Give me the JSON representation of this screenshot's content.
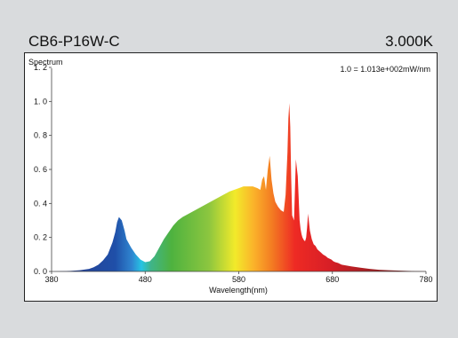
{
  "header": {
    "model": "CB6-P16W-C",
    "cct": "3.000K"
  },
  "chart_data": {
    "type": "area",
    "title": "Spectrum",
    "normalization": "1.0 =  1.013e+002mW/nm",
    "xlabel": "Wavelength(nm)",
    "ylabel": "Spectrum",
    "xlim": [
      380,
      780
    ],
    "ylim": [
      0,
      1.2
    ],
    "xticks": [
      380,
      480,
      580,
      680,
      780
    ],
    "xtick_labels": [
      "380",
      "480",
      "580",
      "680",
      "780"
    ],
    "yticks": [
      0,
      0.2,
      0.4,
      0.6,
      0.8,
      1.0,
      1.2
    ],
    "ytick_labels": [
      "0. 0",
      "0. 2",
      "0. 4",
      "0. 6",
      "0. 8",
      "1. 0",
      "1. 2"
    ],
    "grid": false,
    "fill": "wavelength-colored",
    "x": [
      380,
      400,
      410,
      420,
      425,
      430,
      435,
      440,
      445,
      448,
      450,
      452,
      455,
      458,
      460,
      465,
      470,
      475,
      480,
      485,
      490,
      495,
      500,
      505,
      510,
      515,
      520,
      530,
      540,
      550,
      560,
      570,
      580,
      585,
      590,
      595,
      600,
      603,
      605,
      607,
      609,
      611,
      613,
      615,
      617,
      619,
      622,
      625,
      628,
      630,
      632,
      633,
      634,
      635,
      636,
      637,
      639,
      641,
      643,
      645,
      646,
      647,
      648,
      649,
      650,
      651,
      652,
      653,
      654,
      656,
      658,
      660,
      662,
      664,
      666,
      668,
      670,
      673,
      675,
      677,
      679,
      681,
      683,
      686,
      690,
      700,
      710,
      720,
      730,
      740,
      750,
      760,
      770,
      780
    ],
    "y": [
      0,
      0.003,
      0.007,
      0.015,
      0.025,
      0.04,
      0.065,
      0.1,
      0.17,
      0.23,
      0.29,
      0.32,
      0.3,
      0.24,
      0.19,
      0.14,
      0.1,
      0.07,
      0.055,
      0.06,
      0.09,
      0.14,
      0.19,
      0.23,
      0.27,
      0.3,
      0.32,
      0.35,
      0.38,
      0.41,
      0.44,
      0.47,
      0.49,
      0.5,
      0.5,
      0.5,
      0.49,
      0.48,
      0.54,
      0.56,
      0.48,
      0.6,
      0.68,
      0.54,
      0.46,
      0.41,
      0.38,
      0.36,
      0.35,
      0.45,
      0.7,
      0.9,
      0.99,
      0.85,
      0.55,
      0.33,
      0.3,
      0.66,
      0.56,
      0.3,
      0.25,
      0.22,
      0.2,
      0.19,
      0.18,
      0.18,
      0.2,
      0.26,
      0.34,
      0.24,
      0.19,
      0.16,
      0.15,
      0.13,
      0.12,
      0.11,
      0.1,
      0.09,
      0.08,
      0.075,
      0.07,
      0.06,
      0.055,
      0.05,
      0.04,
      0.03,
      0.022,
      0.015,
      0.01,
      0.007,
      0.005,
      0.003,
      0.002,
      0.001
    ]
  }
}
